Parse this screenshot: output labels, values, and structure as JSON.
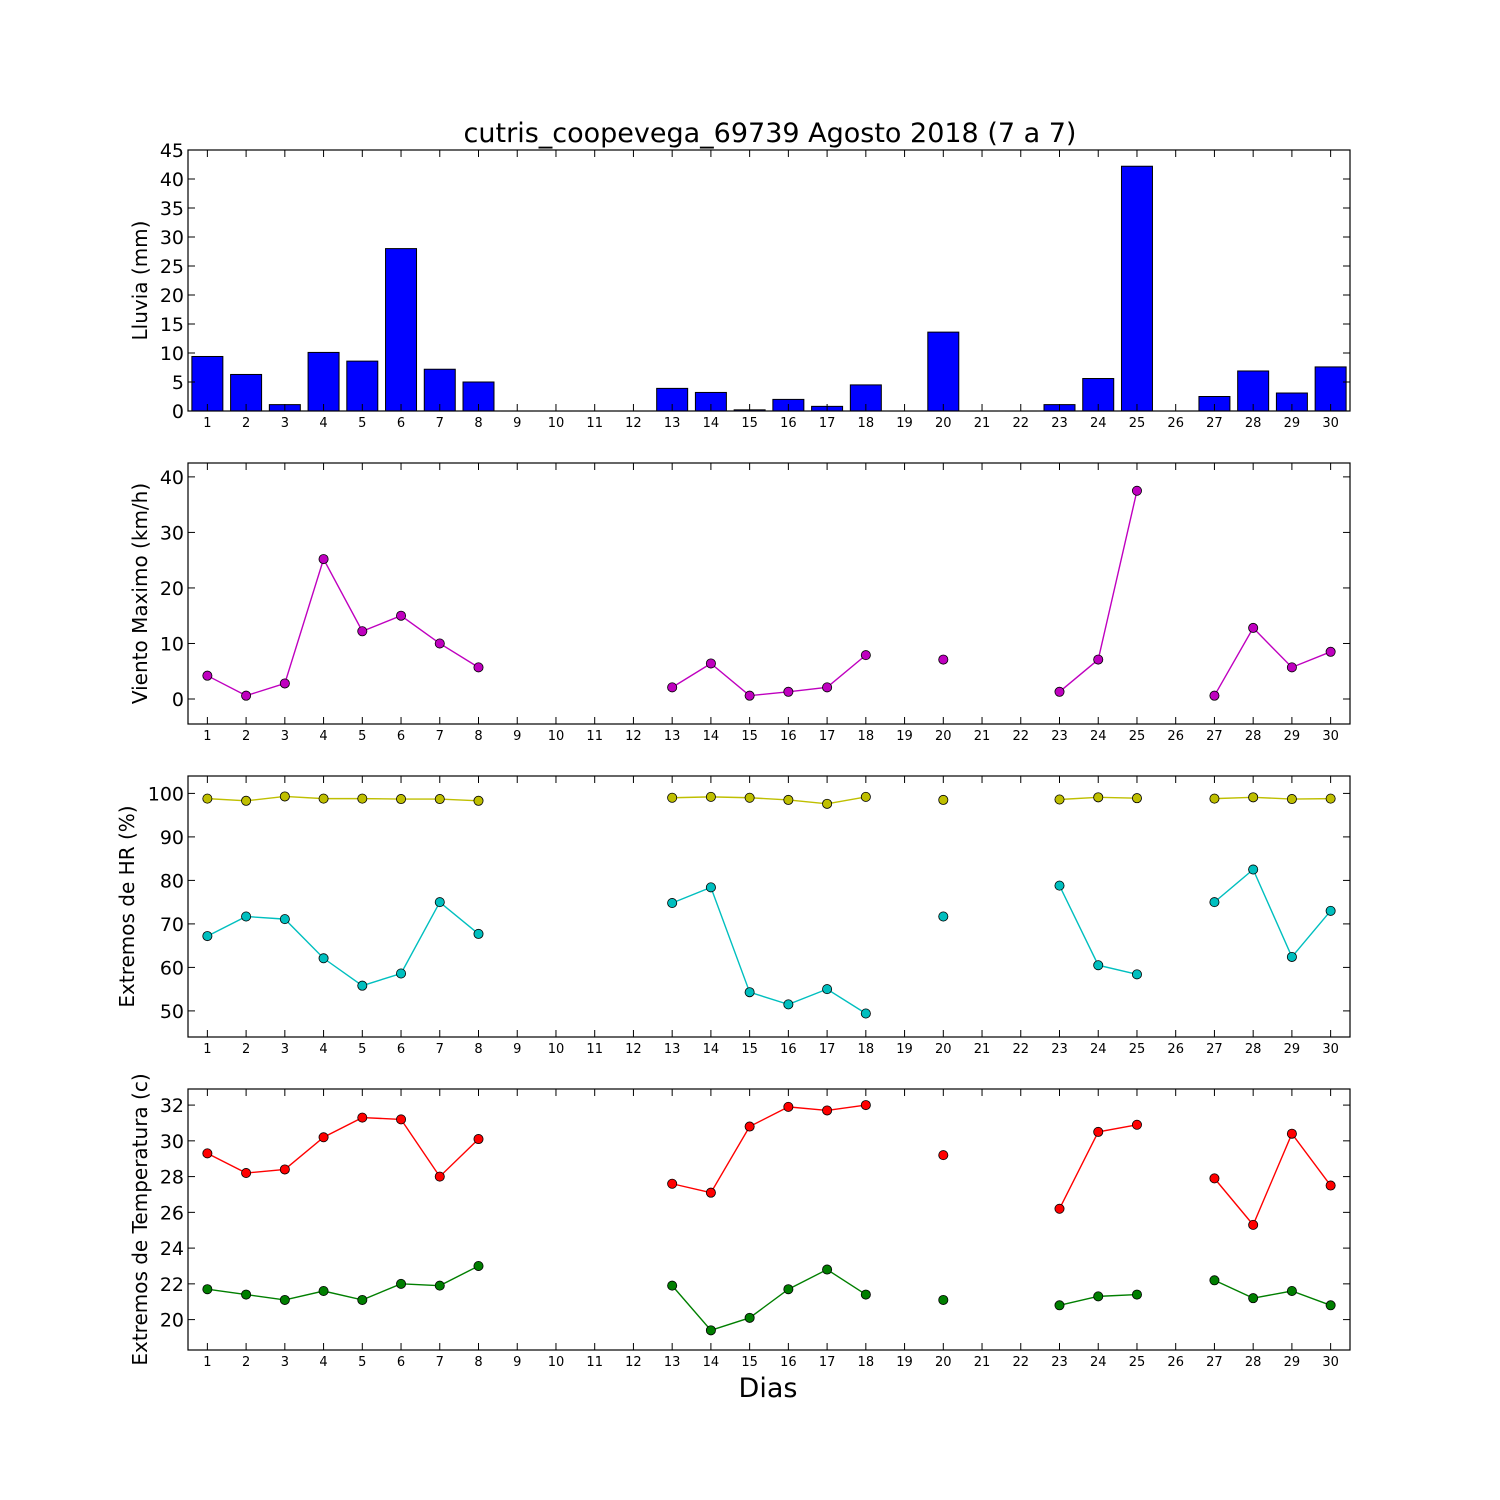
{
  "figure": {
    "title": "cutris_coopevega_69739 Agosto 2018  (7 a 7)",
    "xlabel": "Dias"
  },
  "chart_data": [
    {
      "type": "bar",
      "ylabel": "Lluvia (mm)",
      "ylim": [
        0,
        45
      ],
      "yticks": [
        0,
        5,
        10,
        15,
        20,
        25,
        30,
        35,
        40,
        45
      ],
      "x": [
        1,
        2,
        3,
        4,
        5,
        6,
        7,
        8,
        9,
        10,
        11,
        12,
        13,
        14,
        15,
        16,
        17,
        18,
        19,
        20,
        21,
        22,
        23,
        24,
        25,
        26,
        27,
        28,
        29,
        30
      ],
      "series": [
        {
          "color": "#0000ff",
          "values": [
            9.4,
            6.3,
            1.1,
            10.1,
            8.6,
            28.0,
            7.2,
            5.0,
            0,
            0,
            0,
            0,
            3.9,
            3.2,
            0.2,
            2.0,
            0.8,
            4.5,
            0,
            13.6,
            0,
            0,
            1.1,
            5.6,
            42.2,
            0,
            2.5,
            6.9,
            3.1,
            7.6
          ]
        }
      ]
    },
    {
      "type": "line",
      "ylabel": "Viento Maximo (km/h)",
      "ylim": [
        -4.5,
        42.5
      ],
      "yticks": [
        0,
        10,
        20,
        30,
        40
      ],
      "x": [
        1,
        2,
        3,
        4,
        5,
        6,
        7,
        8,
        9,
        10,
        11,
        12,
        13,
        14,
        15,
        16,
        17,
        18,
        19,
        20,
        21,
        22,
        23,
        24,
        25,
        26,
        27,
        28,
        29,
        30
      ],
      "series": [
        {
          "color": "#bf00bf",
          "values": [
            4.2,
            0.6,
            2.8,
            25.2,
            12.2,
            15.0,
            10.0,
            5.7,
            null,
            null,
            null,
            null,
            2.1,
            6.4,
            0.6,
            1.3,
            2.1,
            7.9,
            null,
            7.1,
            null,
            null,
            1.3,
            7.1,
            37.5,
            null,
            0.6,
            12.8,
            5.7,
            8.5
          ]
        }
      ]
    },
    {
      "type": "line",
      "ylabel": "Extremos de HR (%)",
      "ylim": [
        44,
        104
      ],
      "yticks": [
        50,
        60,
        70,
        80,
        90,
        100
      ],
      "x": [
        1,
        2,
        3,
        4,
        5,
        6,
        7,
        8,
        9,
        10,
        11,
        12,
        13,
        14,
        15,
        16,
        17,
        18,
        19,
        20,
        21,
        22,
        23,
        24,
        25,
        26,
        27,
        28,
        29,
        30
      ],
      "series": [
        {
          "color": "#bfbf00",
          "values": [
            98.8,
            98.3,
            99.3,
            98.8,
            98.8,
            98.7,
            98.7,
            98.3,
            null,
            null,
            null,
            null,
            99.0,
            99.2,
            99.0,
            98.5,
            97.6,
            99.2,
            null,
            98.5,
            null,
            null,
            98.6,
            99.1,
            98.9,
            null,
            98.8,
            99.1,
            98.7,
            98.8
          ]
        },
        {
          "color": "#00bfbf",
          "values": [
            67.2,
            71.7,
            71.1,
            62.1,
            55.8,
            58.6,
            75.0,
            67.7,
            null,
            null,
            null,
            null,
            74.8,
            78.4,
            54.3,
            51.5,
            55.0,
            49.4,
            null,
            71.7,
            null,
            null,
            78.8,
            60.5,
            58.4,
            null,
            75.0,
            82.5,
            62.4,
            73.0
          ]
        }
      ]
    },
    {
      "type": "line",
      "ylabel": "Extremos de Temperatura (c)",
      "ylim": [
        18.3,
        32.9
      ],
      "yticks": [
        20,
        22,
        24,
        26,
        28,
        30,
        32
      ],
      "x": [
        1,
        2,
        3,
        4,
        5,
        6,
        7,
        8,
        9,
        10,
        11,
        12,
        13,
        14,
        15,
        16,
        17,
        18,
        19,
        20,
        21,
        22,
        23,
        24,
        25,
        26,
        27,
        28,
        29,
        30
      ],
      "series": [
        {
          "color": "#ff0000",
          "values": [
            29.3,
            28.2,
            28.4,
            30.2,
            31.3,
            31.2,
            28.0,
            30.1,
            null,
            null,
            null,
            null,
            27.6,
            27.1,
            30.8,
            31.9,
            31.7,
            32.0,
            null,
            29.2,
            null,
            null,
            26.2,
            30.5,
            30.9,
            null,
            27.9,
            25.3,
            30.4,
            27.5
          ]
        },
        {
          "color": "#007f00",
          "values": [
            21.7,
            21.4,
            21.1,
            21.6,
            21.1,
            22.0,
            21.9,
            23.0,
            null,
            null,
            null,
            null,
            21.9,
            19.4,
            20.1,
            21.7,
            22.8,
            21.4,
            null,
            21.1,
            null,
            null,
            20.8,
            21.3,
            21.4,
            null,
            22.2,
            21.2,
            21.6,
            20.8
          ]
        }
      ]
    }
  ]
}
